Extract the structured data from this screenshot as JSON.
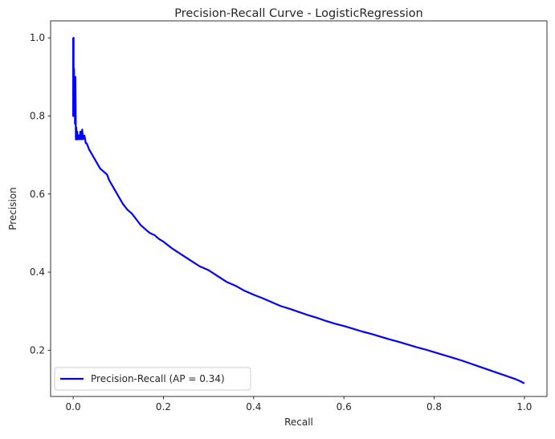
{
  "chart_data": {
    "type": "line",
    "title": "Precision-Recall Curve - LogisticRegression",
    "xlabel": "Recall",
    "ylabel": "Precision",
    "xlim": [
      -0.05,
      1.05
    ],
    "ylim": [
      0.0815,
      1.0435
    ],
    "xticks": [
      0.0,
      0.2,
      0.4,
      0.6,
      0.8,
      1.0
    ],
    "xtick_labels": [
      "0.0",
      "0.2",
      "0.4",
      "0.6",
      "0.8",
      "1.0"
    ],
    "yticks": [
      0.2,
      0.4,
      0.6,
      0.8,
      1.0
    ],
    "ytick_labels": [
      "0.2",
      "0.4",
      "0.6",
      "0.8",
      "1.0"
    ],
    "grid": false,
    "legend_position": "lower-left",
    "series": [
      {
        "name": "Precision-Recall (AP = 0.34)",
        "color": "#0000ff",
        "x": [
          0.0,
          0.0,
          0.001,
          0.001,
          0.002,
          0.002,
          0.003,
          0.003,
          0.004,
          0.004,
          0.005,
          0.006,
          0.007,
          0.008,
          0.009,
          0.01,
          0.012,
          0.014,
          0.016,
          0.018,
          0.02,
          0.022,
          0.025,
          0.028,
          0.03,
          0.035,
          0.04,
          0.045,
          0.05,
          0.055,
          0.06,
          0.065,
          0.07,
          0.075,
          0.08,
          0.085,
          0.09,
          0.095,
          0.1,
          0.11,
          0.12,
          0.13,
          0.14,
          0.15,
          0.16,
          0.17,
          0.18,
          0.19,
          0.2,
          0.22,
          0.24,
          0.26,
          0.28,
          0.3,
          0.32,
          0.34,
          0.36,
          0.38,
          0.4,
          0.42,
          0.44,
          0.46,
          0.48,
          0.5,
          0.52,
          0.54,
          0.56,
          0.58,
          0.6,
          0.62,
          0.64,
          0.66,
          0.68,
          0.7,
          0.72,
          0.74,
          0.76,
          0.78,
          0.8,
          0.82,
          0.84,
          0.86,
          0.88,
          0.9,
          0.92,
          0.94,
          0.96,
          0.98,
          0.99,
          1.0
        ],
        "y": [
          1.0,
          0.8,
          1.0,
          0.82,
          0.92,
          0.8,
          0.86,
          0.81,
          0.88,
          0.78,
          0.9,
          0.74,
          0.77,
          0.74,
          0.76,
          0.74,
          0.75,
          0.74,
          0.76,
          0.74,
          0.765,
          0.74,
          0.75,
          0.73,
          0.73,
          0.715,
          0.705,
          0.695,
          0.685,
          0.675,
          0.665,
          0.66,
          0.655,
          0.65,
          0.635,
          0.625,
          0.615,
          0.605,
          0.595,
          0.575,
          0.56,
          0.55,
          0.535,
          0.52,
          0.51,
          0.5,
          0.495,
          0.485,
          0.478,
          0.46,
          0.445,
          0.43,
          0.415,
          0.405,
          0.39,
          0.375,
          0.365,
          0.352,
          0.342,
          0.333,
          0.323,
          0.313,
          0.306,
          0.298,
          0.29,
          0.283,
          0.275,
          0.268,
          0.262,
          0.255,
          0.248,
          0.242,
          0.235,
          0.228,
          0.222,
          0.215,
          0.208,
          0.202,
          0.195,
          0.188,
          0.181,
          0.174,
          0.166,
          0.158,
          0.15,
          0.142,
          0.134,
          0.126,
          0.121,
          0.115
        ]
      }
    ]
  }
}
